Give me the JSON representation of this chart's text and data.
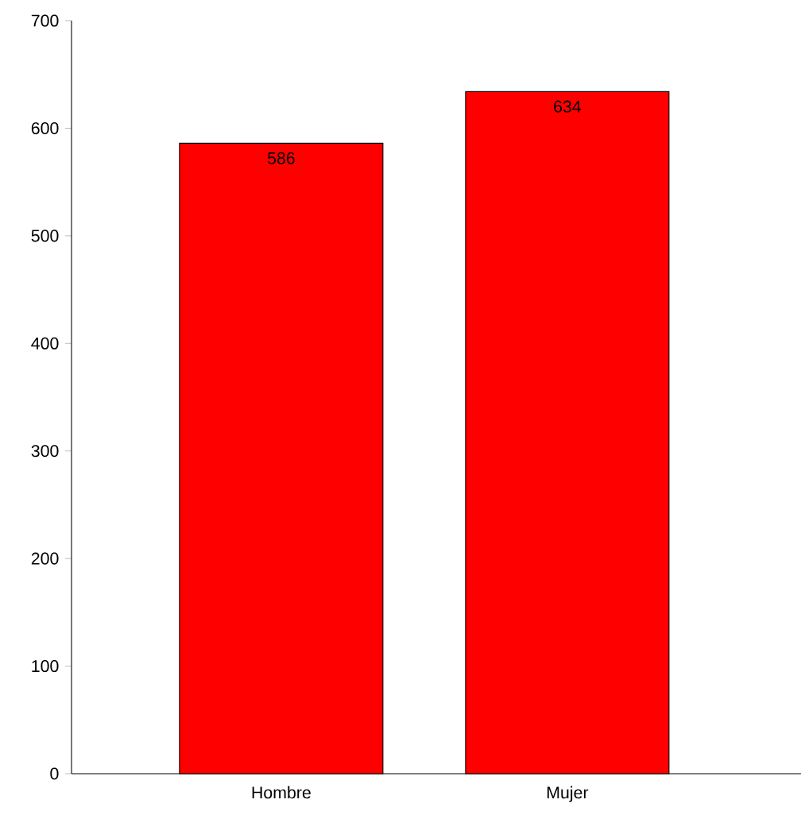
{
  "chart_data": {
    "type": "bar",
    "categories": [
      "Hombre",
      "Mujer"
    ],
    "values": [
      586,
      634
    ],
    "color": "#ff0000",
    "ylim": [
      0,
      700
    ],
    "yticks": [
      0,
      100,
      200,
      300,
      400,
      500,
      600,
      700
    ],
    "data_labels": true,
    "grid": false
  }
}
